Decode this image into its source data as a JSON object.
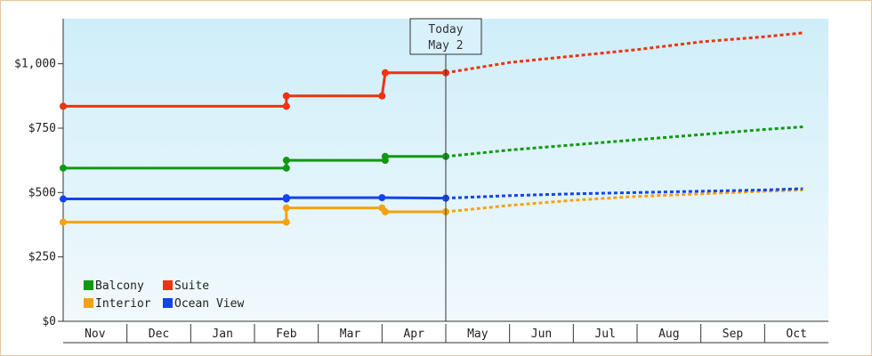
{
  "chart_data": {
    "type": "line",
    "title": "",
    "xlabel": "",
    "ylabel": "",
    "categories": [
      "Nov",
      "Dec",
      "Jan",
      "Feb",
      "Mar",
      "Apr",
      "May",
      "Jun",
      "Jul",
      "Aug",
      "Sep",
      "Oct"
    ],
    "ylim": [
      0,
      1175
    ],
    "y_ticks": [
      {
        "value": 0,
        "label": "$0"
      },
      {
        "value": 250,
        "label": "$250"
      },
      {
        "value": 500,
        "label": "$500"
      },
      {
        "value": 750,
        "label": "$750"
      },
      {
        "value": 1000,
        "label": "$1,000"
      }
    ],
    "today_marker": {
      "line1": "Today",
      "line2": "May 2",
      "x": 6.0
    },
    "grid": false,
    "legend_position": "bottom-left",
    "series": [
      {
        "name": "Balcony",
        "color": "#119911",
        "history": [
          [
            0,
            595
          ],
          [
            3.5,
            595
          ],
          [
            3.5,
            625
          ],
          [
            5.05,
            625
          ],
          [
            5.05,
            640
          ],
          [
            6.0,
            640
          ]
        ],
        "points": [
          [
            0,
            595
          ],
          [
            3.5,
            595
          ],
          [
            3.5,
            625
          ],
          [
            5.05,
            625
          ],
          [
            5.05,
            640
          ],
          [
            6.0,
            640
          ]
        ],
        "forecast": [
          [
            6.0,
            640
          ],
          [
            7,
            665
          ],
          [
            8,
            685
          ],
          [
            9,
            705
          ],
          [
            10,
            725
          ],
          [
            11,
            745
          ],
          [
            11.6,
            755
          ]
        ]
      },
      {
        "name": "Suite",
        "color": "#ee3311",
        "history": [
          [
            0,
            835
          ],
          [
            3.5,
            835
          ],
          [
            3.5,
            875
          ],
          [
            5.0,
            875
          ],
          [
            5.05,
            965
          ],
          [
            6.0,
            965
          ]
        ],
        "points": [
          [
            0,
            835
          ],
          [
            3.5,
            835
          ],
          [
            3.5,
            875
          ],
          [
            5.0,
            875
          ],
          [
            5.05,
            965
          ],
          [
            6.0,
            965
          ]
        ],
        "forecast": [
          [
            6.0,
            965
          ],
          [
            6.5,
            985
          ],
          [
            7,
            1005
          ],
          [
            8,
            1030
          ],
          [
            9,
            1055
          ],
          [
            10,
            1085
          ],
          [
            11,
            1105
          ],
          [
            11.6,
            1120
          ]
        ]
      },
      {
        "name": "Interior",
        "color": "#f5a211",
        "history": [
          [
            0,
            385
          ],
          [
            3.5,
            385
          ],
          [
            3.5,
            440
          ],
          [
            5.0,
            440
          ],
          [
            5.05,
            425
          ],
          [
            6.0,
            425
          ]
        ],
        "points": [
          [
            0,
            385
          ],
          [
            3.5,
            385
          ],
          [
            3.5,
            440
          ],
          [
            5.0,
            440
          ],
          [
            5.05,
            425
          ],
          [
            6.0,
            425
          ]
        ],
        "forecast": [
          [
            6.0,
            425
          ],
          [
            7,
            450
          ],
          [
            8,
            470
          ],
          [
            9,
            485
          ],
          [
            10,
            495
          ],
          [
            11,
            505
          ],
          [
            11.6,
            510
          ]
        ]
      },
      {
        "name": "Ocean View",
        "color": "#1144ee",
        "history": [
          [
            0,
            475
          ],
          [
            3.5,
            475
          ],
          [
            3.5,
            480
          ],
          [
            5.0,
            480
          ],
          [
            6.0,
            478
          ]
        ],
        "points": [
          [
            0,
            475
          ],
          [
            3.5,
            475
          ],
          [
            3.5,
            480
          ],
          [
            5.0,
            480
          ],
          [
            6.0,
            478
          ]
        ],
        "forecast": [
          [
            6.0,
            478
          ],
          [
            7,
            488
          ],
          [
            8,
            495
          ],
          [
            9,
            500
          ],
          [
            10,
            505
          ],
          [
            11,
            510
          ],
          [
            11.6,
            515
          ]
        ]
      }
    ]
  }
}
